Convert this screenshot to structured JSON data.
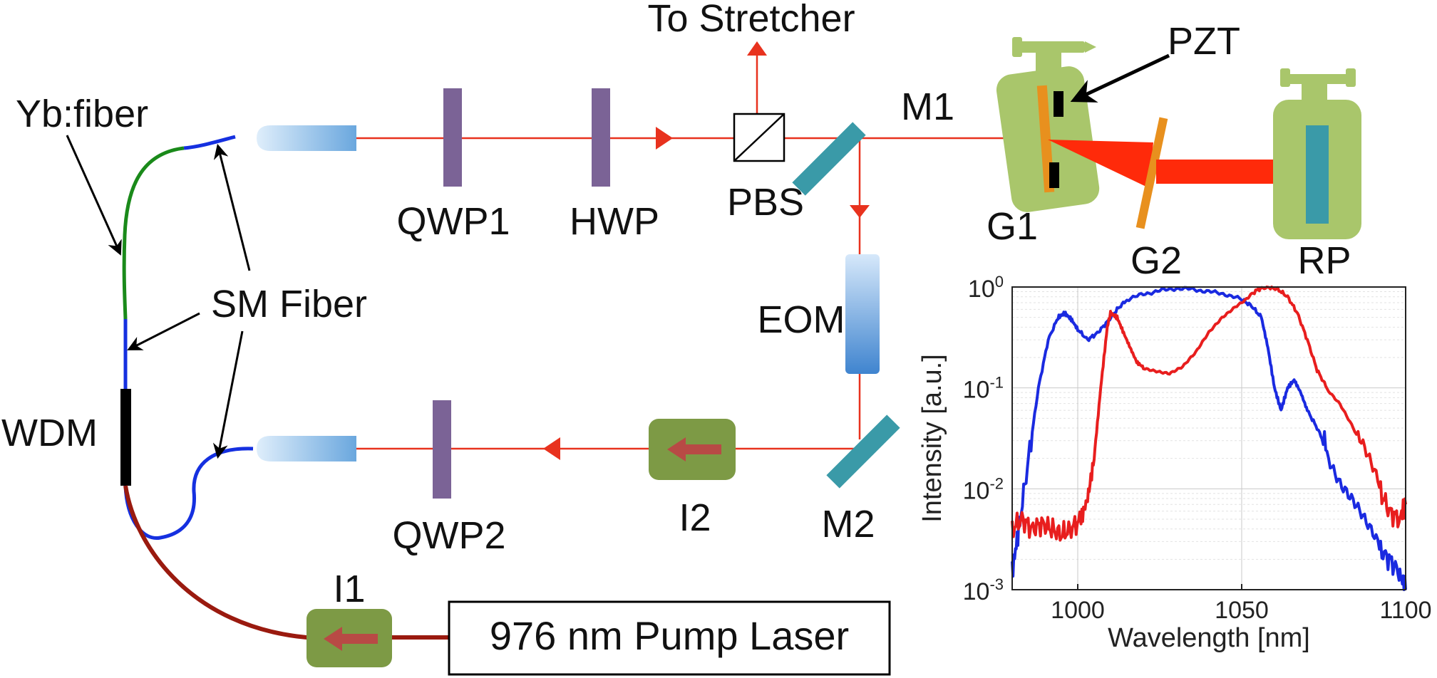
{
  "labels": {
    "yb_fiber": "Yb:fiber",
    "sm_fiber": "SM Fiber",
    "wdm": "WDM",
    "qwp1": "QWP1",
    "hwp": "HWP",
    "pbs": "PBS",
    "to_stretcher": "To Stretcher",
    "m1": "M1",
    "pzt": "PZT",
    "g1": "G1",
    "g2": "G2",
    "rp": "RP",
    "eom": "EOM",
    "m2": "M2",
    "i2": "I2",
    "qwp2": "QWP2",
    "i1": "I1",
    "pump_laser": "976 nm Pump Laser"
  },
  "colors": {
    "beam": "#e8321e",
    "waveplate": "#7b6396",
    "mirror": "#3a9aa8",
    "isolator": "#7d9a45",
    "isolator_arrow": "#b84a45",
    "grating_mount": "#a9c66b",
    "grating": "#e8901e",
    "collimator": "#7fb2e0",
    "fiber_blue": "#1530e0",
    "fiber_green": "#1a8a1a",
    "fiber_red": "#9a1a0f"
  },
  "chart_data": {
    "type": "line",
    "xlabel": "Wavelength [nm]",
    "ylabel": "Intensity [a.u.]",
    "xlim": [
      980,
      1100
    ],
    "ylim": [
      0.001,
      1
    ],
    "yscale": "log",
    "grid": true,
    "xticks": [
      "1000",
      "1050",
      "1100"
    ],
    "yticks": [
      {
        "base": "10",
        "exp": "0"
      },
      {
        "base": "10",
        "exp": "-1"
      },
      {
        "base": "10",
        "exp": "-2"
      },
      {
        "base": "10",
        "exp": "-3"
      }
    ],
    "series": [
      {
        "color": "#1a2ae0",
        "x": [
          980,
          982,
          985,
          988,
          991,
          994,
          996,
          998,
          1000,
          1003,
          1006,
          1009,
          1012,
          1015,
          1020,
          1025,
          1030,
          1035,
          1040,
          1045,
          1050,
          1053,
          1056,
          1058,
          1060,
          1062,
          1064,
          1066,
          1068,
          1070,
          1073,
          1076,
          1080,
          1084,
          1088,
          1092,
          1095,
          1098,
          1100
        ],
        "y": [
          0.0015,
          0.004,
          0.02,
          0.1,
          0.3,
          0.5,
          0.55,
          0.48,
          0.38,
          0.3,
          0.35,
          0.45,
          0.6,
          0.75,
          0.85,
          0.92,
          0.97,
          0.95,
          0.9,
          0.85,
          0.75,
          0.65,
          0.5,
          0.25,
          0.1,
          0.06,
          0.1,
          0.12,
          0.09,
          0.06,
          0.04,
          0.025,
          0.012,
          0.007,
          0.004,
          0.0025,
          0.002,
          0.0015,
          0.001
        ]
      },
      {
        "color": "#e81e1e",
        "x": [
          980,
          983,
          986,
          989,
          992,
          995,
          998,
          1001,
          1003,
          1005,
          1007,
          1009,
          1010,
          1012,
          1014,
          1016,
          1018,
          1020,
          1024,
          1028,
          1032,
          1036,
          1040,
          1044,
          1048,
          1052,
          1055,
          1058,
          1061,
          1064,
          1067,
          1070,
          1073,
          1076,
          1080,
          1084,
          1088,
          1092,
          1095,
          1098,
          1100
        ],
        "y": [
          0.004,
          0.005,
          0.004,
          0.0045,
          0.004,
          0.0035,
          0.004,
          0.005,
          0.008,
          0.02,
          0.1,
          0.4,
          0.55,
          0.5,
          0.35,
          0.25,
          0.18,
          0.16,
          0.15,
          0.14,
          0.16,
          0.22,
          0.35,
          0.5,
          0.65,
          0.8,
          0.95,
          1.0,
          0.95,
          0.8,
          0.55,
          0.3,
          0.15,
          0.1,
          0.07,
          0.04,
          0.02,
          0.01,
          0.006,
          0.005,
          0.007
        ]
      }
    ]
  }
}
